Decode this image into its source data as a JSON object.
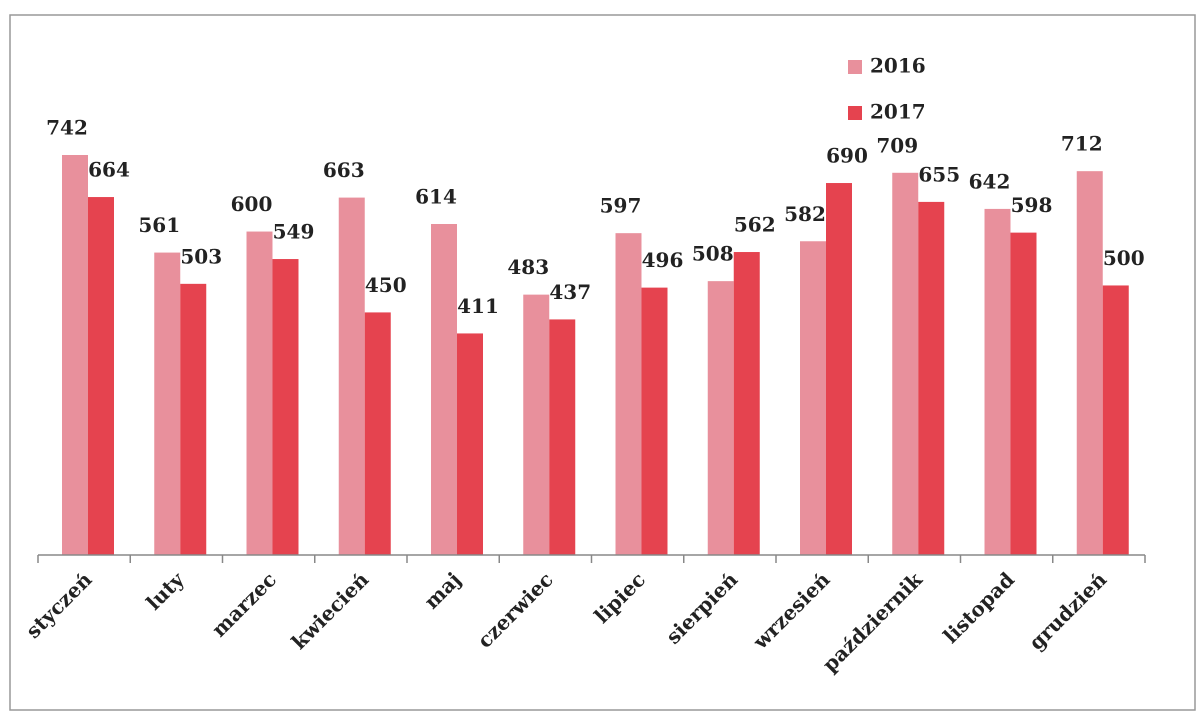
{
  "chart_data": {
    "type": "bar",
    "categories": [
      "styczeń",
      "luty",
      "marzec",
      "kwiecień",
      "maj",
      "czerwiec",
      "lipiec",
      "sierpień",
      "wrzesień",
      "październik",
      "listopad",
      "grudzień"
    ],
    "series": [
      {
        "name": "2016",
        "color": "#e8909c",
        "values": [
          742,
          561,
          600,
          663,
          614,
          483,
          597,
          508,
          582,
          709,
          642,
          712
        ]
      },
      {
        "name": "2017",
        "color": "#e5434f",
        "values": [
          664,
          503,
          549,
          450,
          411,
          437,
          496,
          562,
          690,
          655,
          598,
          500
        ]
      }
    ],
    "legend": "top-right"
  }
}
